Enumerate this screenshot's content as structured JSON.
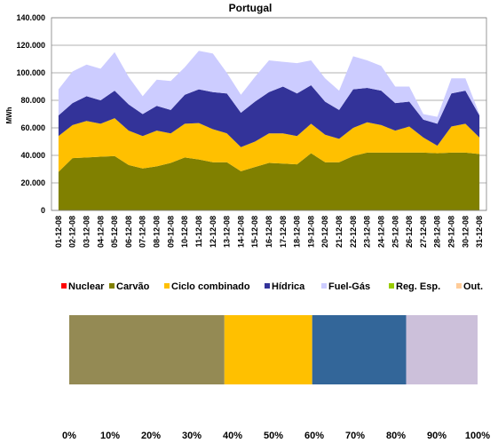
{
  "chart_data": [
    {
      "type": "stacked-area",
      "title": "Portugal",
      "y_label": "MWh",
      "categories": [
        "01-12-08",
        "02-12-08",
        "03-12-08",
        "04-12-08",
        "05-12-08",
        "06-12-08",
        "07-12-08",
        "08-12-08",
        "09-12-08",
        "10-12-08",
        "11-12-08",
        "12-12-08",
        "13-12-08",
        "14-12-08",
        "15-12-08",
        "16-12-08",
        "17-12-08",
        "18-12-08",
        "19-12-08",
        "20-12-08",
        "21-12-08",
        "22-12-08",
        "23-12-08",
        "24-12-08",
        "25-12-08",
        "26-12-08",
        "27-12-08",
        "28-12-08",
        "29-12-08",
        "30-12-08",
        "31-12-08"
      ],
      "series": [
        {
          "name": "Nuclear",
          "color": "#ff0000",
          "values": [
            0,
            0,
            0,
            0,
            0,
            0,
            0,
            0,
            0,
            0,
            0,
            0,
            0,
            0,
            0,
            0,
            0,
            0,
            0,
            0,
            0,
            0,
            0,
            0,
            0,
            0,
            0,
            0,
            0,
            0,
            0
          ]
        },
        {
          "name": "Carvão",
          "color": "#808000",
          "values": [
            28000,
            38000,
            38500,
            39000,
            39500,
            33000,
            30500,
            32000,
            34500,
            38500,
            37000,
            35000,
            35000,
            28500,
            31500,
            34500,
            34000,
            33500,
            41500,
            35000,
            35000,
            39500,
            42000,
            42000,
            42000,
            42000,
            42000,
            41500,
            42000,
            42000,
            41000
          ]
        },
        {
          "name": "Ciclo combinado",
          "color": "#ffc000",
          "values": [
            26000,
            24000,
            26500,
            24000,
            27500,
            25000,
            23500,
            26000,
            21500,
            24500,
            26500,
            24000,
            21000,
            17500,
            18500,
            21500,
            22000,
            20500,
            21500,
            20000,
            17000,
            20500,
            22000,
            20000,
            16000,
            19000,
            11000,
            5500,
            19000,
            21000,
            12000
          ]
        },
        {
          "name": "Hídrica",
          "color": "#333399",
          "values": [
            15000,
            16000,
            18000,
            17000,
            20000,
            19000,
            16000,
            18000,
            17000,
            21000,
            24500,
            27000,
            29000,
            25000,
            29000,
            30000,
            34000,
            31000,
            28000,
            24000,
            21000,
            28000,
            25000,
            25000,
            20000,
            18000,
            13000,
            16000,
            24000,
            24000,
            16000
          ]
        },
        {
          "name": "Fuel-Gás",
          "color": "#ccccff",
          "values": [
            19000,
            23000,
            23000,
            23000,
            28000,
            20000,
            13000,
            19000,
            21000,
            20000,
            28000,
            28000,
            15000,
            13000,
            18000,
            23000,
            18000,
            22000,
            18000,
            17000,
            14000,
            24000,
            20000,
            18000,
            12000,
            11000,
            4000,
            5000,
            11000,
            9000,
            1000
          ]
        },
        {
          "name": "Reg. Esp.",
          "color": "#99cc00",
          "values": [
            0,
            0,
            0,
            0,
            0,
            0,
            0,
            0,
            0,
            0,
            0,
            0,
            0,
            0,
            0,
            0,
            0,
            0,
            0,
            0,
            0,
            0,
            0,
            0,
            0,
            0,
            0,
            0,
            0,
            0,
            0
          ]
        },
        {
          "name": "Out.",
          "color": "#ffcc99",
          "values": [
            0,
            0,
            0,
            0,
            0,
            0,
            0,
            0,
            0,
            0,
            0,
            0,
            0,
            0,
            0,
            0,
            0,
            0,
            0,
            0,
            0,
            0,
            0,
            0,
            0,
            0,
            0,
            0,
            0,
            0,
            0
          ]
        }
      ],
      "ylim": [
        0,
        140000
      ],
      "yticks": [
        0,
        {
          "value": 20000,
          "label": "20.000"
        },
        {
          "value": 40000,
          "label": "40.000"
        },
        {
          "value": 60000,
          "label": "60.000"
        },
        {
          "value": 80000,
          "label": "80.000"
        },
        {
          "value": 100000,
          "label": "100.000"
        },
        {
          "value": 120000,
          "label": "120.000"
        },
        {
          "value": 140000,
          "label": "140.000"
        }
      ],
      "grid": true
    },
    {
      "type": "stacked-hbar",
      "series": [
        {
          "color": "#948a54",
          "values": [
            38
          ]
        },
        {
          "color": "#ffc000",
          "values": [
            21.5
          ]
        },
        {
          "color": "#336699",
          "values": [
            23
          ]
        },
        {
          "color": "#ccc0da",
          "values": [
            17.5
          ]
        }
      ],
      "xlim": [
        0,
        100
      ],
      "xticks": [
        {
          "value": 0,
          "label": "0%"
        },
        {
          "value": 10,
          "label": "10%"
        },
        {
          "value": 20,
          "label": "20%"
        },
        {
          "value": 30,
          "label": "30%"
        },
        {
          "value": 40,
          "label": "40%"
        },
        {
          "value": 50,
          "label": "50%"
        },
        {
          "value": 60,
          "label": "60%"
        },
        {
          "value": 70,
          "label": "70%"
        },
        {
          "value": 80,
          "label": "80%"
        },
        {
          "value": 90,
          "label": "90%"
        },
        {
          "value": 100,
          "label": "100%"
        }
      ]
    }
  ]
}
